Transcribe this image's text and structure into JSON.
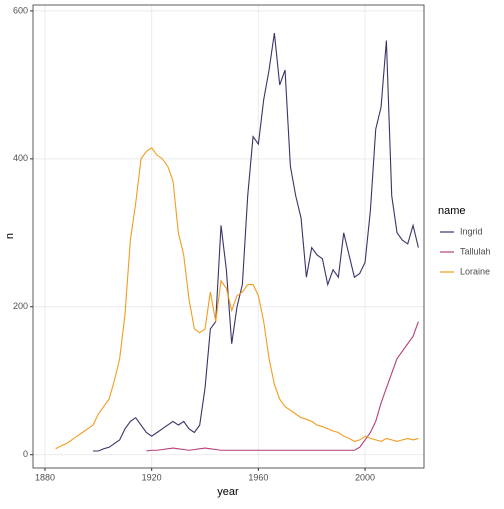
{
  "chart_data": {
    "type": "line",
    "x_label": "year",
    "y_label": "n",
    "legend_title": "name",
    "legend": "right",
    "grid": true,
    "x": [
      1884,
      1886,
      1888,
      1890,
      1892,
      1894,
      1896,
      1898,
      1900,
      1902,
      1904,
      1906,
      1908,
      1910,
      1912,
      1914,
      1916,
      1918,
      1920,
      1922,
      1924,
      1926,
      1928,
      1930,
      1932,
      1934,
      1936,
      1938,
      1940,
      1942,
      1944,
      1946,
      1948,
      1950,
      1952,
      1954,
      1956,
      1958,
      1960,
      1962,
      1964,
      1966,
      1968,
      1970,
      1972,
      1974,
      1976,
      1978,
      1980,
      1982,
      1984,
      1986,
      1988,
      1990,
      1992,
      1994,
      1996,
      1998,
      2000,
      2002,
      2004,
      2006,
      2008,
      2010,
      2012,
      2014,
      2016,
      2018,
      2020
    ],
    "series": [
      {
        "name": "Ingrid",
        "color": "#3d3268",
        "values": [
          null,
          null,
          null,
          null,
          null,
          null,
          null,
          5,
          5,
          8,
          10,
          15,
          20,
          35,
          45,
          50,
          40,
          30,
          25,
          30,
          35,
          40,
          45,
          40,
          45,
          35,
          30,
          40,
          90,
          170,
          180,
          310,
          250,
          150,
          200,
          230,
          350,
          430,
          420,
          480,
          520,
          570,
          500,
          520,
          390,
          350,
          320,
          240,
          280,
          270,
          265,
          230,
          250,
          240,
          300,
          270,
          240,
          245,
          260,
          330,
          440,
          470,
          560,
          350,
          300,
          290,
          285,
          310,
          280
        ]
      },
      {
        "name": "Tallulah",
        "color": "#b5407a",
        "values": [
          null,
          null,
          null,
          null,
          null,
          null,
          null,
          null,
          null,
          null,
          null,
          null,
          null,
          null,
          null,
          null,
          null,
          5,
          6,
          6,
          7,
          8,
          9,
          8,
          7,
          6,
          7,
          8,
          9,
          8,
          7,
          6,
          6,
          6,
          6,
          6,
          6,
          6,
          6,
          6,
          6,
          6,
          6,
          6,
          6,
          6,
          6,
          6,
          6,
          6,
          6,
          6,
          6,
          6,
          6,
          6,
          6,
          10,
          20,
          30,
          45,
          70,
          90,
          110,
          130,
          140,
          150,
          160,
          180
        ]
      },
      {
        "name": "Loraine",
        "color": "#f39c1f",
        "values": [
          8,
          12,
          15,
          20,
          25,
          30,
          35,
          40,
          55,
          65,
          75,
          100,
          130,
          190,
          290,
          340,
          400,
          410,
          415,
          405,
          400,
          390,
          370,
          300,
          270,
          210,
          170,
          165,
          170,
          220,
          180,
          235,
          225,
          195,
          215,
          220,
          230,
          230,
          215,
          180,
          130,
          95,
          75,
          65,
          60,
          55,
          50,
          48,
          45,
          40,
          38,
          35,
          32,
          30,
          25,
          22,
          18,
          20,
          25,
          22,
          20,
          18,
          22,
          20,
          18,
          20,
          22,
          20,
          22
        ]
      }
    ],
    "xlim": [
      1875.5,
      2022.1
    ],
    "xticks": [
      1880,
      1920,
      1960,
      2000
    ],
    "ylim": [
      -18,
      608
    ],
    "yticks": [
      0,
      200,
      400,
      600
    ]
  }
}
